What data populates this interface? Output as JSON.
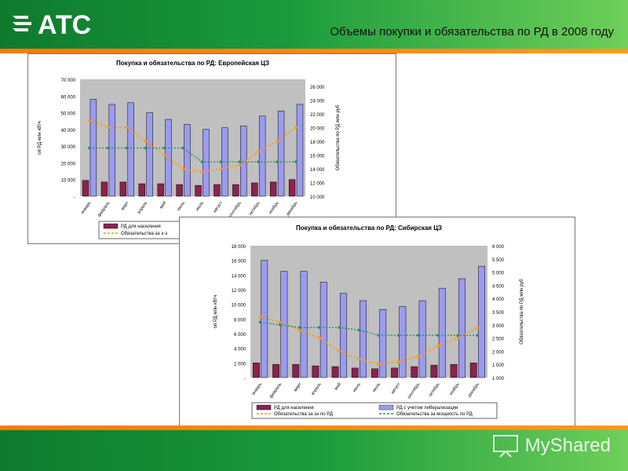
{
  "header": {
    "title": "Объемы покупки и обязательства по РД в 2008 году",
    "logo_text": "АТС"
  },
  "footer": {
    "watermark": "MyShared"
  },
  "colors": {
    "bar_population": "#8b2252",
    "bar_liberalization": "#9b9bf0",
    "energy_line": "#ff9900",
    "capacity_line": "#2e8b57"
  },
  "chart_data": [
    {
      "type": "bar",
      "title": "Покупка и обязательства по РД: Европейская ЦЗ",
      "ylabel": "оп РД млн кВтч",
      "ylabel_right": "Обязательства по РД млн руб",
      "categories": [
        "январь",
        "февраль",
        "март",
        "апрель",
        "май",
        "июнь",
        "июль",
        "август",
        "сентябрь",
        "октябрь",
        "ноябрь",
        "декабрь"
      ],
      "yticks": [
        "70 000",
        "60 000",
        "50 000",
        "40 000",
        "30 000",
        "20 000",
        "10 000",
        "-"
      ],
      "yticks_right": [
        "26 000",
        "24 000",
        "22 000",
        "20 000",
        "18 000",
        "16 000",
        "14 000",
        "12 000",
        "10 000"
      ],
      "ylim": [
        0,
        70000
      ],
      "ylim_right": [
        10000,
        27000
      ],
      "series": [
        {
          "name": "РД для населения",
          "axis": "left",
          "values": [
            9500,
            8500,
            8500,
            7500,
            7500,
            7000,
            6500,
            7000,
            7000,
            8000,
            8500,
            10000
          ]
        },
        {
          "name": "",
          "axis": "left",
          "values": [
            58000,
            55000,
            56000,
            50000,
            46000,
            43000,
            40000,
            41000,
            42000,
            48000,
            51000,
            55000
          ]
        },
        {
          "name": "Обязательства за э",
          "axis": "right",
          "values": [
            21000,
            20000,
            20000,
            18000,
            16000,
            14000,
            13500,
            14000,
            14500,
            16500,
            18000,
            20000
          ]
        },
        {
          "name": "",
          "axis": "right",
          "values": [
            17000,
            17000,
            17000,
            17000,
            17000,
            17000,
            15000,
            15000,
            15000,
            15000,
            15000,
            15000
          ]
        }
      ],
      "legend": [
        "РД для населения",
        "Обязательства за э э"
      ]
    },
    {
      "type": "bar",
      "title": "Покупка и обязательства по РД: Сибирская ЦЗ",
      "ylabel": "оп РД млн кВтч",
      "ylabel_right": "Обязательства по РД млн руб",
      "categories": [
        "январь",
        "февраль",
        "март",
        "апрель",
        "май",
        "июнь",
        "июль",
        "август",
        "сентябрь",
        "октябрь",
        "ноябрь",
        "декабрь"
      ],
      "yticks": [
        "18 000",
        "16 000",
        "14 000",
        "12 000",
        "10 000",
        "8 000",
        "6 000",
        "4 000",
        "2 000",
        "-"
      ],
      "yticks_right": [
        "6 000",
        "5 500",
        "5 000",
        "4 500",
        "4 000",
        "3 500",
        "3 000",
        "2 500",
        "2 000",
        "1 500",
        "1 000"
      ],
      "ylim": [
        0,
        18000
      ],
      "ylim_right": [
        1000,
        6000
      ],
      "series": [
        {
          "name": "РД для населения",
          "axis": "left",
          "values": [
            2000,
            1800,
            1800,
            1600,
            1500,
            1300,
            1200,
            1300,
            1500,
            1700,
            1800,
            2000
          ]
        },
        {
          "name": "РД с учетом либерализации",
          "axis": "left",
          "values": [
            16000,
            14500,
            14500,
            13000,
            11500,
            10500,
            9300,
            9700,
            10500,
            12200,
            13500,
            15200
          ]
        },
        {
          "name": "Обязательства за ээ по РД",
          "axis": "right",
          "values": [
            3300,
            3100,
            2800,
            2500,
            2000,
            1700,
            1500,
            1600,
            1800,
            2200,
            2500,
            2900
          ]
        },
        {
          "name": "Обязательства за мощность по РД",
          "axis": "right",
          "values": [
            3100,
            3000,
            2900,
            2900,
            2900,
            2800,
            2600,
            2600,
            2600,
            2600,
            2600,
            2600
          ]
        }
      ],
      "legend": [
        "РД для населения",
        "РД с учетом либерализации",
        "Обязательства за ээ по РД",
        "Обязательства за мощность по РД"
      ]
    }
  ]
}
